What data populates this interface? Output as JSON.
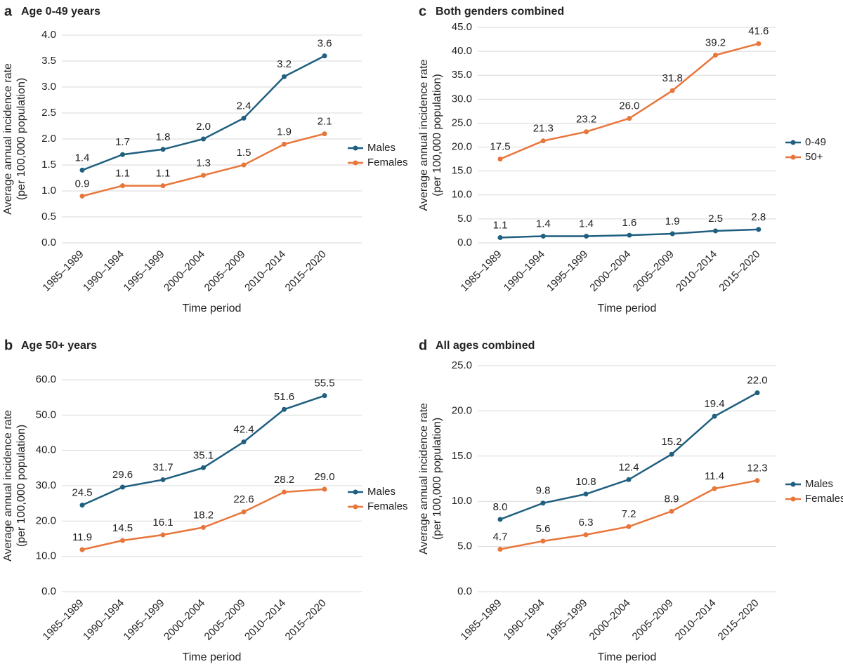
{
  "chart_data": [
    {
      "panel": "a",
      "type": "line",
      "title": "Age 0-49 years",
      "categories": [
        "1985–1989",
        "1990–1994",
        "1995–1999",
        "2000–2004",
        "2005–2009",
        "2010–2014",
        "2015–2020"
      ],
      "series": [
        {
          "name": "Males",
          "color": "#1f5f7f",
          "values": [
            1.4,
            1.7,
            1.8,
            2.0,
            2.4,
            3.2,
            3.6
          ],
          "value_labels": [
            "1.4",
            "1.7",
            "1.8",
            "2.0",
            "2.4",
            "3.2",
            "3.6"
          ]
        },
        {
          "name": "Females",
          "color": "#e8763a",
          "values": [
            0.9,
            1.1,
            1.1,
            1.3,
            1.5,
            1.9,
            2.1
          ],
          "value_labels": [
            "0.9",
            "1.1",
            "1.1",
            "1.3",
            "1.5",
            "1.9",
            "2.1"
          ]
        }
      ],
      "ylim": [
        0,
        4
      ],
      "yticks": [
        {
          "value": 0,
          "label": "0.0"
        },
        0.5,
        {
          "value": 1,
          "label": "1.0"
        },
        1.5,
        {
          "value": 2,
          "label": "2.0"
        },
        2.5,
        {
          "value": 3,
          "label": "3.0"
        },
        3.5,
        {
          "value": 4,
          "label": "4.0"
        }
      ],
      "xlabel": "Time period",
      "ylabel": [
        "Average annual incidence rate",
        "(per 100,000 population)"
      ],
      "grid": true,
      "legend": "right"
    },
    {
      "panel": "b",
      "type": "line",
      "title": "Age 50+ years",
      "categories": [
        "1985–1989",
        "1990–1994",
        "1995–1999",
        "2000–2004",
        "2005–2009",
        "2010–2014",
        "2015–2020"
      ],
      "series": [
        {
          "name": "Males",
          "color": "#1f5f7f",
          "values": [
            24.5,
            29.6,
            31.7,
            35.1,
            42.4,
            51.6,
            55.5
          ],
          "value_labels": [
            "24.5",
            "29.6",
            "31.7",
            "35.1",
            "42.4",
            "51.6",
            "55.5"
          ]
        },
        {
          "name": "Females",
          "color": "#e8763a",
          "values": [
            11.9,
            14.5,
            16.1,
            18.2,
            22.6,
            28.2,
            29.0
          ],
          "value_labels": [
            "11.9",
            "14.5",
            "16.1",
            "18.2",
            "22.6",
            "28.2",
            "29.0"
          ]
        }
      ],
      "ylim": [
        0,
        60
      ],
      "yticks": [
        {
          "value": 0,
          "label": "0.0"
        },
        {
          "value": 10,
          "label": "10.0"
        },
        {
          "value": 20,
          "label": "20.0"
        },
        {
          "value": 30,
          "label": "30.0"
        },
        {
          "value": 40,
          "label": "40.0"
        },
        {
          "value": 50,
          "label": "50.0"
        },
        {
          "value": 60,
          "label": "60.0"
        }
      ],
      "xlabel": "Time period",
      "ylabel": [
        "Average annual incidence rate",
        "(per 100,000 population)"
      ],
      "grid": true,
      "legend": "right"
    },
    {
      "panel": "c",
      "type": "line",
      "title": "Both genders combined",
      "categories": [
        "1985–1989",
        "1990–1994",
        "1995–1999",
        "2000–2004",
        "2005–2009",
        "2010–2014",
        "2015–2020"
      ],
      "series": [
        {
          "name": "0-49",
          "color": "#1f5f7f",
          "values": [
            1.1,
            1.4,
            1.4,
            1.6,
            1.9,
            2.5,
            2.8
          ],
          "value_labels": [
            "1.1",
            "1.4",
            "1.4",
            "1.6",
            "1.9",
            "2.5",
            "2.8"
          ]
        },
        {
          "name": "50+",
          "color": "#e8763a",
          "values": [
            17.5,
            21.3,
            23.2,
            26.0,
            31.8,
            39.2,
            41.6
          ],
          "value_labels": [
            "17.5",
            "21.3",
            "23.2",
            "26.0",
            "31.8",
            "39.2",
            "41.6"
          ]
        }
      ],
      "ylim": [
        0,
        45
      ],
      "yticks": [
        {
          "value": 0,
          "label": "0.0"
        },
        {
          "value": 5,
          "label": "5.0"
        },
        {
          "value": 10,
          "label": "10.0"
        },
        {
          "value": 15,
          "label": "15.0"
        },
        {
          "value": 20,
          "label": "20.0"
        },
        {
          "value": 25,
          "label": "25.0"
        },
        {
          "value": 30,
          "label": "30.0"
        },
        {
          "value": 35,
          "label": "35.0"
        },
        {
          "value": 40,
          "label": "40.0"
        },
        {
          "value": 45,
          "label": "45.0"
        }
      ],
      "xlabel": "Time period",
      "ylabel": [
        "Average annual incidence rate",
        "(per 100,000 population)"
      ],
      "grid": true,
      "legend": "right"
    },
    {
      "panel": "d",
      "type": "line",
      "title": "All ages combined",
      "categories": [
        "1985–1989",
        "1990–1994",
        "1995–1999",
        "2000–2004",
        "2005–2009",
        "2010–2014",
        "2015–2020"
      ],
      "series": [
        {
          "name": "Males",
          "color": "#1f5f7f",
          "values": [
            8.0,
            9.8,
            10.8,
            12.4,
            15.2,
            19.4,
            22.0
          ],
          "value_labels": [
            "8.0",
            "9.8",
            "10.8",
            "12.4",
            "15.2",
            "19.4",
            "22.0"
          ]
        },
        {
          "name": "Females",
          "color": "#e8763a",
          "values": [
            4.7,
            5.6,
            6.3,
            7.2,
            8.9,
            11.4,
            12.3
          ],
          "value_labels": [
            "4.7",
            "5.6",
            "6.3",
            "7.2",
            "8.9",
            "11.4",
            "12.3"
          ]
        }
      ],
      "ylim": [
        0,
        25
      ],
      "yticks": [
        {
          "value": 0,
          "label": "0.0"
        },
        {
          "value": 5,
          "label": "5.0"
        },
        {
          "value": 10,
          "label": "10.0"
        },
        {
          "value": 15,
          "label": "15.0"
        },
        {
          "value": 20,
          "label": "20.0"
        },
        {
          "value": 25,
          "label": "25.0"
        }
      ],
      "xlabel": "Time period",
      "ylabel": [
        "Average annual incidence rate",
        "(per 100,000 population)"
      ],
      "grid": true,
      "legend": "right"
    }
  ]
}
